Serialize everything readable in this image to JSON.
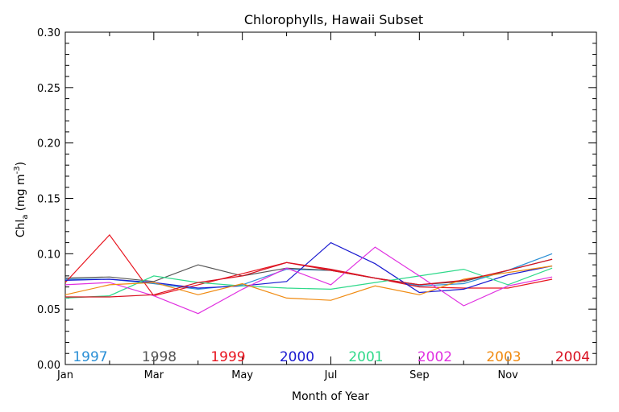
{
  "chart_data": {
    "type": "line",
    "title": "Chlorophylls, Hawaii Subset",
    "xlabel": "Month of Year",
    "ylabel_main": "Chl",
    "ylabel_sub": "a",
    "ylabel_unit": "(mg m",
    "ylabel_sup": "-3",
    "ylabel_close": ")",
    "xlim": [
      1,
      13
    ],
    "ylim": [
      0,
      0.3
    ],
    "x": [
      1,
      2,
      3,
      4,
      5,
      6,
      7,
      8,
      9,
      10,
      11,
      12
    ],
    "x_ticks": [
      {
        "label": "Jan",
        "value": 1
      },
      {
        "label": "Mar",
        "value": 3
      },
      {
        "label": "May",
        "value": 5
      },
      {
        "label": "Jul",
        "value": 7
      },
      {
        "label": "Sep",
        "value": 9
      },
      {
        "label": "Nov",
        "value": 11
      }
    ],
    "y_ticks": [
      "0.00",
      "0.05",
      "0.10",
      "0.15",
      "0.20",
      "0.25",
      "0.30"
    ],
    "y_tick_values": [
      0,
      0.05,
      0.1,
      0.15,
      0.2,
      0.25,
      0.3
    ],
    "grid": false,
    "legend_position": "bottom-inside",
    "series": [
      {
        "name": "1997",
        "color": "#2a8fd6",
        "values": [
          0.077,
          0.077,
          0.073,
          0.068,
          0.072,
          0.086,
          0.085,
          0.078,
          0.071,
          0.073,
          0.085,
          0.1
        ]
      },
      {
        "name": "1998",
        "color": "#555555",
        "values": [
          0.078,
          0.079,
          0.075,
          0.09,
          0.08,
          0.087,
          0.085,
          0.078,
          0.072,
          0.075,
          0.085,
          0.095
        ]
      },
      {
        "name": "1999",
        "color": "#e8141e",
        "values": [
          0.074,
          0.117,
          0.062,
          0.072,
          0.082,
          0.092,
          0.085,
          0.078,
          0.07,
          0.069,
          0.069,
          0.077
        ]
      },
      {
        "name": "2000",
        "color": "#1a1ad0",
        "values": [
          0.076,
          0.077,
          0.074,
          0.069,
          0.071,
          0.075,
          0.11,
          0.091,
          0.065,
          0.068,
          0.081,
          0.089
        ]
      },
      {
        "name": "2001",
        "color": "#2ed98a",
        "values": [
          0.06,
          0.062,
          0.08,
          0.074,
          0.071,
          0.069,
          0.068,
          0.074,
          0.08,
          0.086,
          0.072,
          0.087
        ]
      },
      {
        "name": "2002",
        "color": "#e030e0",
        "values": [
          0.072,
          0.074,
          0.062,
          0.046,
          0.068,
          0.087,
          0.072,
          0.106,
          0.08,
          0.053,
          0.071,
          0.079
        ]
      },
      {
        "name": "2003",
        "color": "#f08a10",
        "values": [
          0.063,
          0.072,
          0.074,
          0.063,
          0.073,
          0.06,
          0.058,
          0.071,
          0.063,
          0.077,
          0.083,
          0.089
        ]
      },
      {
        "name": "2004",
        "color": "#d81020",
        "values": [
          0.061,
          0.061,
          0.063,
          0.074,
          0.08,
          0.092,
          0.086,
          0.078,
          0.072,
          0.076,
          0.085,
          0.095
        ]
      }
    ]
  }
}
